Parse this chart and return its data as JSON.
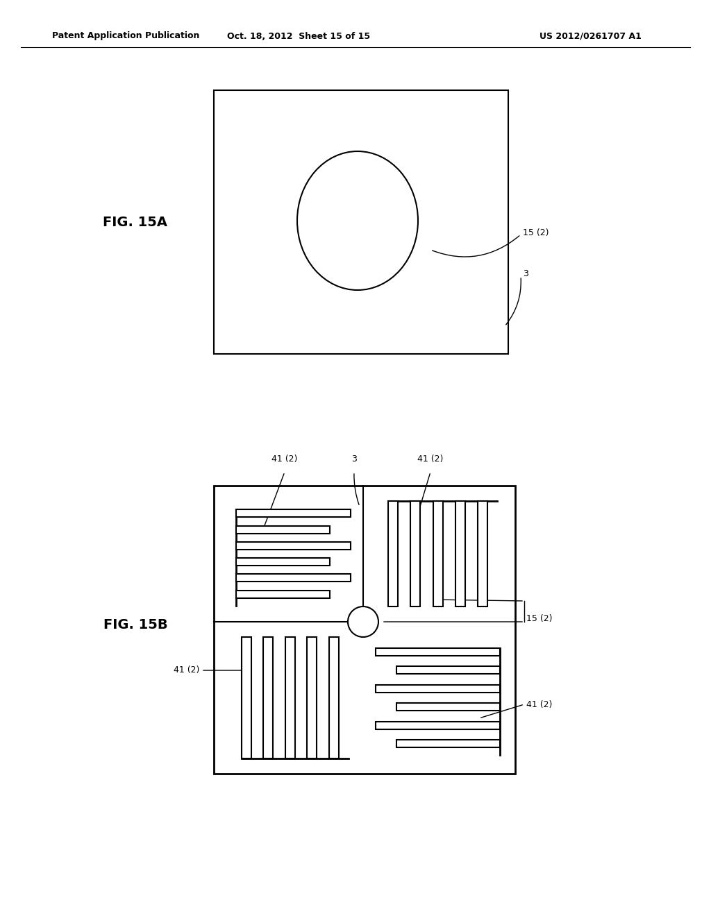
{
  "header_left": "Patent Application Publication",
  "header_mid": "Oct. 18, 2012  Sheet 15 of 15",
  "header_right": "US 2012/0261707 A1",
  "fig15a_label": "FIG. 15A",
  "fig15b_label": "FIG. 15B",
  "background": "#ffffff",
  "line_color": "#000000"
}
